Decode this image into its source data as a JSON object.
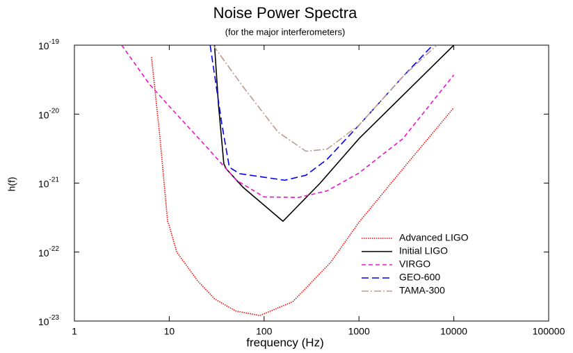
{
  "chart_data": {
    "type": "line",
    "title": "Noise Power Spectra",
    "subtitle": "(for the major interferometers)",
    "x_label": "frequency (Hz)",
    "y_label": "h(f)",
    "xscale": "log",
    "yscale": "log",
    "xlim": [
      1,
      100000
    ],
    "ylim": [
      1e-23,
      1e-19
    ],
    "xticks": [
      1,
      10,
      100,
      1000,
      10000,
      100000
    ],
    "yticks": [
      {
        "value": 1e-23,
        "label": "10",
        "exponent": "-23"
      },
      {
        "value": 1e-22,
        "label": "10",
        "exponent": "-22"
      },
      {
        "value": 1e-21,
        "label": "10",
        "exponent": "-21"
      },
      {
        "value": 1e-20,
        "label": "10",
        "exponent": "-20"
      },
      {
        "value": 1e-19,
        "label": "10",
        "exponent": "-19"
      }
    ],
    "legend": "lower right",
    "series": [
      {
        "name": "Advanced LIGO",
        "color": "#ff0000",
        "dash": "1.5,1.5",
        "x": [
          6.5,
          8,
          9.6,
          10,
          12,
          20,
          30,
          50,
          90,
          200,
          500,
          1000,
          3000,
          10000
        ],
        "values": [
          6.7e-20,
          4.4e-21,
          2.8e-22,
          2.4e-22,
          1e-22,
          3.8e-23,
          2.1e-23,
          1.4e-23,
          1.2e-23,
          1.9e-23,
          7e-23,
          2.7e-22,
          1.7e-21,
          1.24e-20
        ]
      },
      {
        "name": "Initial LIGO",
        "color": "#000000",
        "dash": "none",
        "x": [
          30,
          33,
          37.6,
          40,
          60,
          158,
          390,
          1000,
          10000
        ],
        "values": [
          1e-19,
          1.4e-20,
          1.9e-21,
          1.6e-21,
          8.7e-22,
          2.8e-22,
          1e-21,
          4.4e-21,
          1e-19
        ]
      },
      {
        "name": "VIRGO",
        "color": "#ee11cc",
        "dash": "6,4",
        "x": [
          3.15,
          6.2,
          10,
          26,
          51,
          100,
          231,
          460,
          1000,
          2900,
          10000
        ],
        "values": [
          1e-19,
          2.7e-20,
          1.3e-20,
          3.1e-21,
          1.1e-21,
          6.3e-22,
          6.2e-22,
          7.7e-22,
          1.4e-21,
          4.4e-21,
          3.7e-20
        ]
      },
      {
        "name": "GEO-600",
        "color": "#0000ee",
        "dash": "10,5",
        "x": [
          27,
          36,
          43,
          55,
          165,
          276,
          460,
          1000,
          2900,
          6000
        ],
        "values": [
          1e-19,
          6.9e-21,
          1.7e-21,
          1.37e-21,
          1.1e-21,
          1.3e-21,
          2.2e-21,
          6.9e-21,
          3.5e-20,
          1e-19
        ]
      },
      {
        "name": "TAMA-300",
        "color": "#c09a90",
        "dash": "10,3,2,3",
        "x": [
          29,
          60,
          140,
          276,
          460,
          1000,
          2900,
          6600
        ],
        "values": [
          1e-19,
          2.5e-20,
          5.5e-21,
          2.9e-21,
          3.1e-21,
          6.9e-21,
          3.5e-20,
          1e-19
        ]
      }
    ]
  }
}
